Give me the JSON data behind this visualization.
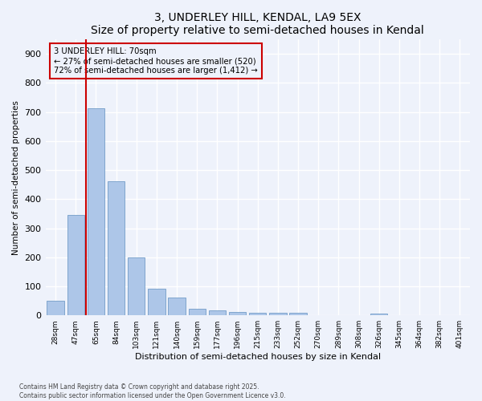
{
  "title": "3, UNDERLEY HILL, KENDAL, LA9 5EX",
  "subtitle": "Size of property relative to semi-detached houses in Kendal",
  "xlabel": "Distribution of semi-detached houses by size in Kendal",
  "ylabel": "Number of semi-detached properties",
  "categories": [
    "28sqm",
    "47sqm",
    "65sqm",
    "84sqm",
    "103sqm",
    "121sqm",
    "140sqm",
    "159sqm",
    "177sqm",
    "196sqm",
    "215sqm",
    "233sqm",
    "252sqm",
    "270sqm",
    "289sqm",
    "308sqm",
    "326sqm",
    "345sqm",
    "364sqm",
    "382sqm",
    "401sqm"
  ],
  "values": [
    50,
    345,
    712,
    462,
    198,
    93,
    62,
    23,
    18,
    13,
    9,
    9,
    9,
    0,
    0,
    0,
    7,
    0,
    0,
    0,
    0
  ],
  "bar_color": "#adc6e8",
  "bar_edge_color": "#6090c0",
  "vline_x": 1.5,
  "vline_color": "#cc0000",
  "annotation_text": "3 UNDERLEY HILL: 70sqm\n← 27% of semi-detached houses are smaller (520)\n72% of semi-detached houses are larger (1,412) →",
  "annotation_box_color": "#cc0000",
  "ylim": [
    0,
    950
  ],
  "yticks": [
    0,
    100,
    200,
    300,
    400,
    500,
    600,
    700,
    800,
    900
  ],
  "background_color": "#eef2fb",
  "grid_color": "#ffffff",
  "footer_line1": "Contains HM Land Registry data © Crown copyright and database right 2025.",
  "footer_line2": "Contains public sector information licensed under the Open Government Licence v3.0."
}
